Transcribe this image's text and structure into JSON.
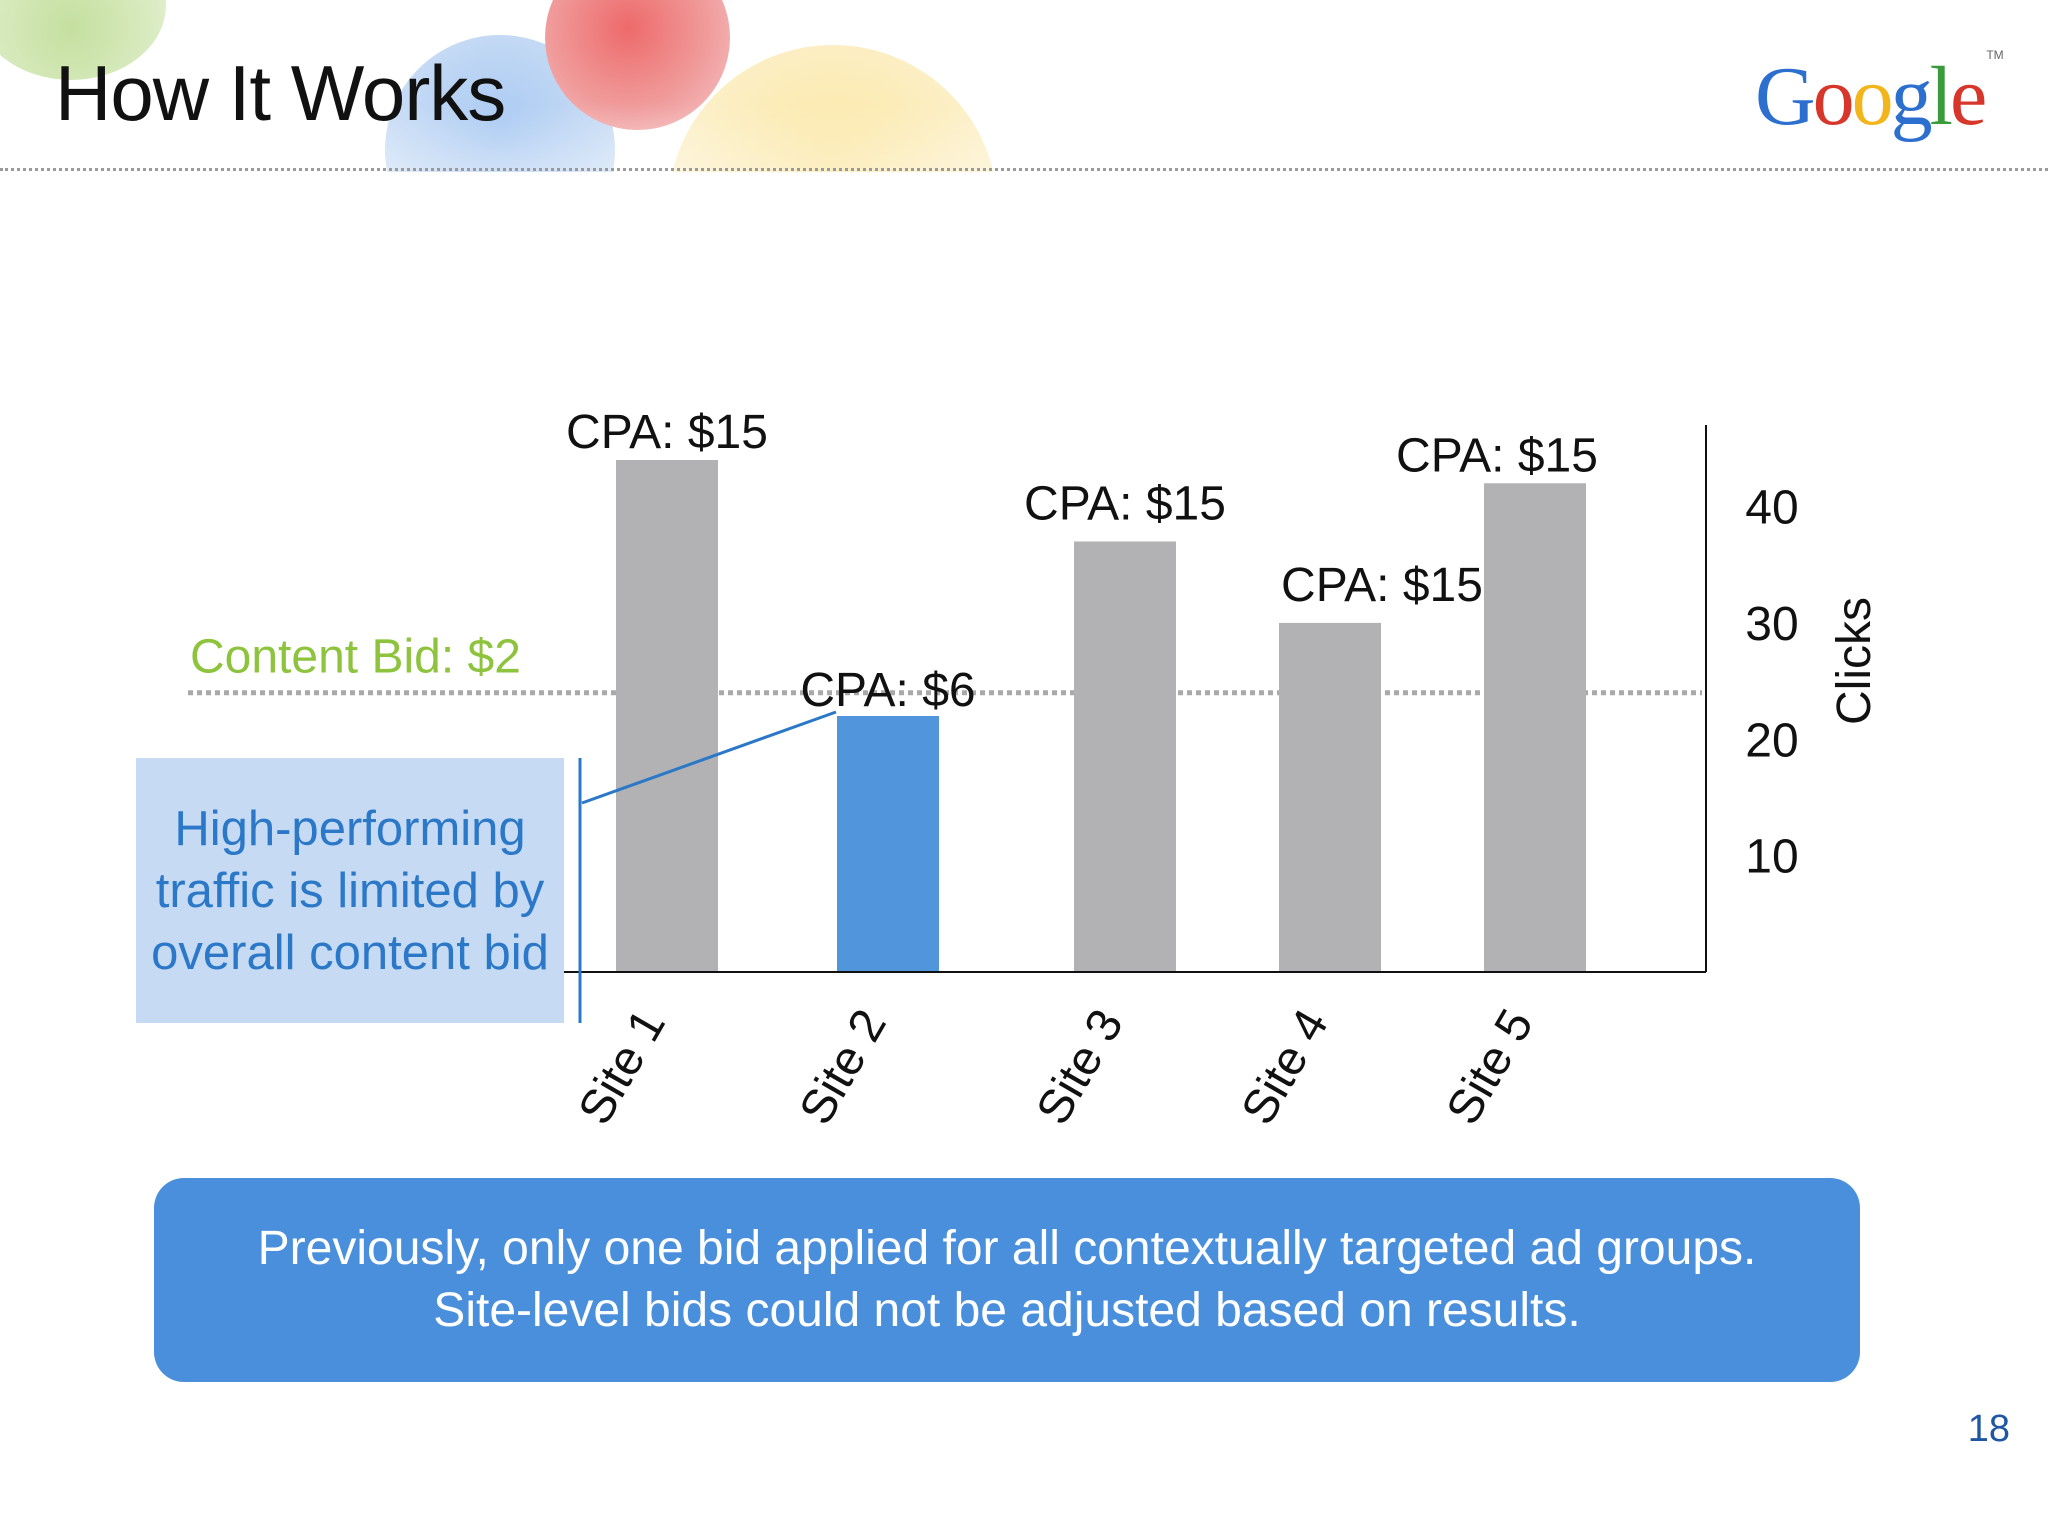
{
  "slide": {
    "title": "How It Works",
    "page_number": "18"
  },
  "logo": {
    "letters": [
      "G",
      "o",
      "o",
      "g",
      "l",
      "e"
    ],
    "colors": [
      "#2d6fcf",
      "#d7362b",
      "#f2b51c",
      "#2d6fcf",
      "#3a9b3c",
      "#d7362b"
    ],
    "tm": "TM"
  },
  "chart_data": {
    "type": "bar",
    "categories": [
      "Site 1",
      "Site 2",
      "Site 3",
      "Site 4",
      "Site 5"
    ],
    "values": [
      44,
      22,
      37,
      30,
      42
    ],
    "bar_labels": [
      "CPA: $15",
      "CPA: $6",
      "CPA: $15",
      "CPA: $15",
      "CPA: $15"
    ],
    "highlight_index": 1,
    "colors": {
      "bar": "#b2b1b3",
      "highlight": "#5196dc",
      "highlight_label": "#2b78c8",
      "reference_line": "#a9a9a9",
      "reference_label": "#8ec33d"
    },
    "y_ticks": [
      10,
      20,
      30,
      40
    ],
    "ylim": [
      0,
      44
    ],
    "y_axis": "right",
    "ylabel": "Clicks",
    "xlabel": "",
    "reference_line": {
      "y": 24,
      "label": "Content Bid: $2"
    },
    "grid": false,
    "legend": "none"
  },
  "annotation": {
    "text": "High-performing traffic is limited by overall content bid"
  },
  "callout": {
    "line1": "Previously, only one bid applied for all contextually targeted ad groups.",
    "line2": "Site-level bids could not be adjusted based on results."
  }
}
